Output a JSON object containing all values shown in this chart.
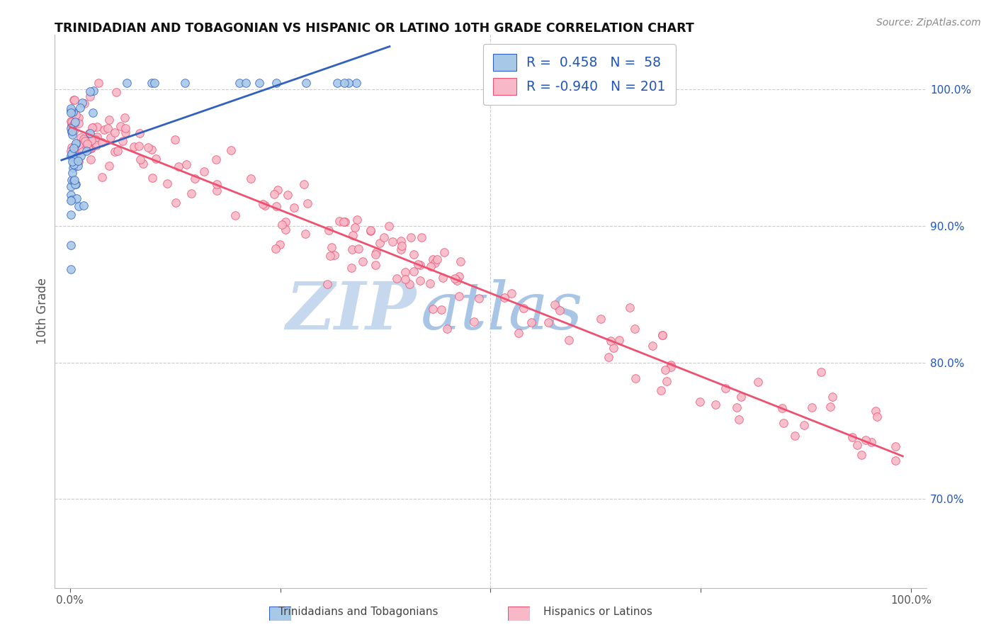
{
  "title": "TRINIDADIAN AND TOBAGONIAN VS HISPANIC OR LATINO 10TH GRADE CORRELATION CHART",
  "source": "Source: ZipAtlas.com",
  "ylabel": "10th Grade",
  "r1": 0.458,
  "n1": 58,
  "r2": -0.94,
  "n2": 201,
  "blue_color": "#A8C8E8",
  "pink_color": "#F8B8C8",
  "blue_line_color": "#3060C0",
  "pink_line_color": "#F05070",
  "legend_text_color": "#2255BB",
  "right_axis_color": "#2255BB",
  "background_color": "#FFFFFF",
  "watermark_zip": "ZIP",
  "watermark_atlas": "atlas",
  "watermark_color_zip": "#C5D8EE",
  "watermark_color_atlas": "#A8C5E5",
  "grid_color": "#CCCCCC",
  "bottom_label1": "Trinidadians and Tobagonians",
  "bottom_label2": "Hispanics or Latinos"
}
